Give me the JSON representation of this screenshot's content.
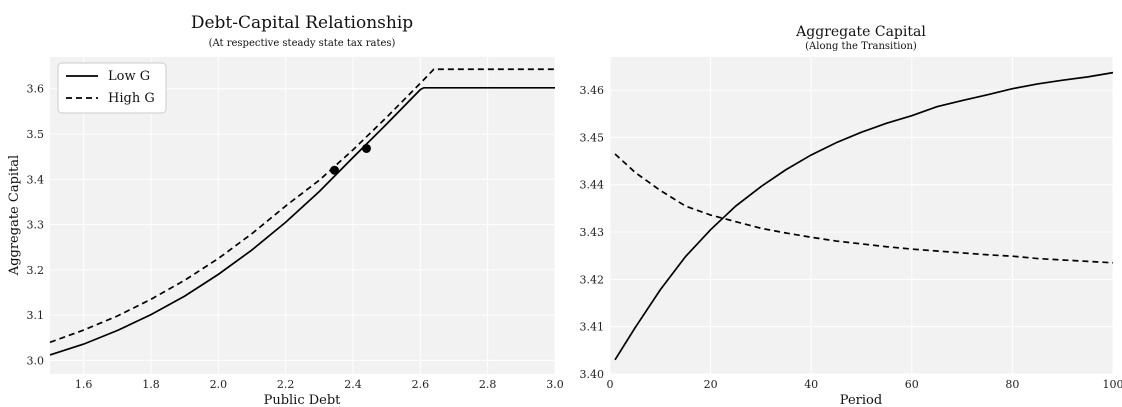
{
  "chart_data": [
    {
      "type": "line",
      "title": "Debt-Capital Relationship",
      "subtitle": "(At respective steady state tax rates)",
      "xlabel": "Public Debt",
      "ylabel": "Aggregate Capital",
      "xlim": [
        1.5,
        3.0
      ],
      "ylim": [
        2.97,
        3.67
      ],
      "xticks": [
        1.6,
        1.8,
        2.0,
        2.2,
        2.4,
        2.6,
        2.8,
        3.0
      ],
      "xtick_labels": [
        "1.6",
        "1.8",
        "2.0",
        "2.2",
        "2.4",
        "2.6",
        "2.8",
        "3.0"
      ],
      "yticks": [
        3.0,
        3.1,
        3.2,
        3.3,
        3.4,
        3.5,
        3.6
      ],
      "ytick_labels": [
        "3.0",
        "3.1",
        "3.2",
        "3.3",
        "3.4",
        "3.5",
        "3.6"
      ],
      "grid": true,
      "legend": "upper-left",
      "series": [
        {
          "name": "Low G",
          "style": "solid",
          "x": [
            1.5,
            1.6,
            1.7,
            1.8,
            1.9,
            2.0,
            2.1,
            2.2,
            2.3,
            2.4,
            2.5,
            2.6,
            2.61,
            2.7,
            2.8,
            2.9,
            3.0
          ],
          "y": [
            3.012,
            3.036,
            3.066,
            3.101,
            3.142,
            3.19,
            3.244,
            3.305,
            3.373,
            3.448,
            3.522,
            3.598,
            3.602,
            3.602,
            3.602,
            3.602,
            3.602
          ],
          "marker": {
            "x": 2.44,
            "y": 3.468
          }
        },
        {
          "name": "High G",
          "style": "dashed",
          "x": [
            1.5,
            1.6,
            1.7,
            1.8,
            1.9,
            2.0,
            2.1,
            2.2,
            2.3,
            2.4,
            2.5,
            2.6,
            2.64,
            2.7,
            2.8,
            2.9,
            3.0
          ],
          "y": [
            3.04,
            3.067,
            3.098,
            3.135,
            3.177,
            3.225,
            3.28,
            3.341,
            3.398,
            3.465,
            3.537,
            3.612,
            3.643,
            3.643,
            3.643,
            3.643,
            3.643
          ],
          "marker": {
            "x": 2.345,
            "y": 3.42
          }
        }
      ]
    },
    {
      "type": "line",
      "title": "Aggregate Capital",
      "subtitle": "(Along the Transition)",
      "xlabel": "Period",
      "ylabel": "",
      "xlim": [
        0,
        100
      ],
      "ylim": [
        3.4,
        3.467
      ],
      "xticks": [
        0,
        20,
        40,
        60,
        80,
        100
      ],
      "xtick_labels": [
        "0",
        "20",
        "40",
        "60",
        "80",
        "100"
      ],
      "yticks": [
        3.4,
        3.41,
        3.42,
        3.43,
        3.44,
        3.45,
        3.46
      ],
      "ytick_labels": [
        "3.40",
        "3.41",
        "3.42",
        "3.43",
        "3.44",
        "3.45",
        "3.46"
      ],
      "grid": true,
      "series": [
        {
          "style": "solid",
          "x": [
            1,
            5,
            10,
            15,
            20,
            25,
            30,
            35,
            40,
            45,
            50,
            55,
            60,
            65,
            70,
            75,
            80,
            85,
            90,
            95,
            100
          ],
          "y": [
            3.403,
            3.4098,
            3.4178,
            3.4248,
            3.4305,
            3.4355,
            3.4396,
            3.4432,
            3.4463,
            3.4489,
            3.4511,
            3.453,
            3.4546,
            3.4565,
            3.4578,
            3.459,
            3.4603,
            3.4613,
            3.4621,
            3.4628,
            3.4637
          ]
        },
        {
          "style": "dashed",
          "x": [
            1,
            5,
            10,
            15,
            20,
            25,
            30,
            35,
            40,
            45,
            50,
            55,
            60,
            65,
            70,
            75,
            80,
            85,
            90,
            95,
            100
          ],
          "y": [
            3.4465,
            3.4426,
            3.4388,
            3.4355,
            3.4336,
            3.4322,
            3.4308,
            3.4298,
            3.4289,
            3.4281,
            3.4275,
            3.4269,
            3.4264,
            3.426,
            3.4256,
            3.4252,
            3.4249,
            3.4244,
            3.4241,
            3.4238,
            3.4235
          ]
        }
      ]
    }
  ]
}
